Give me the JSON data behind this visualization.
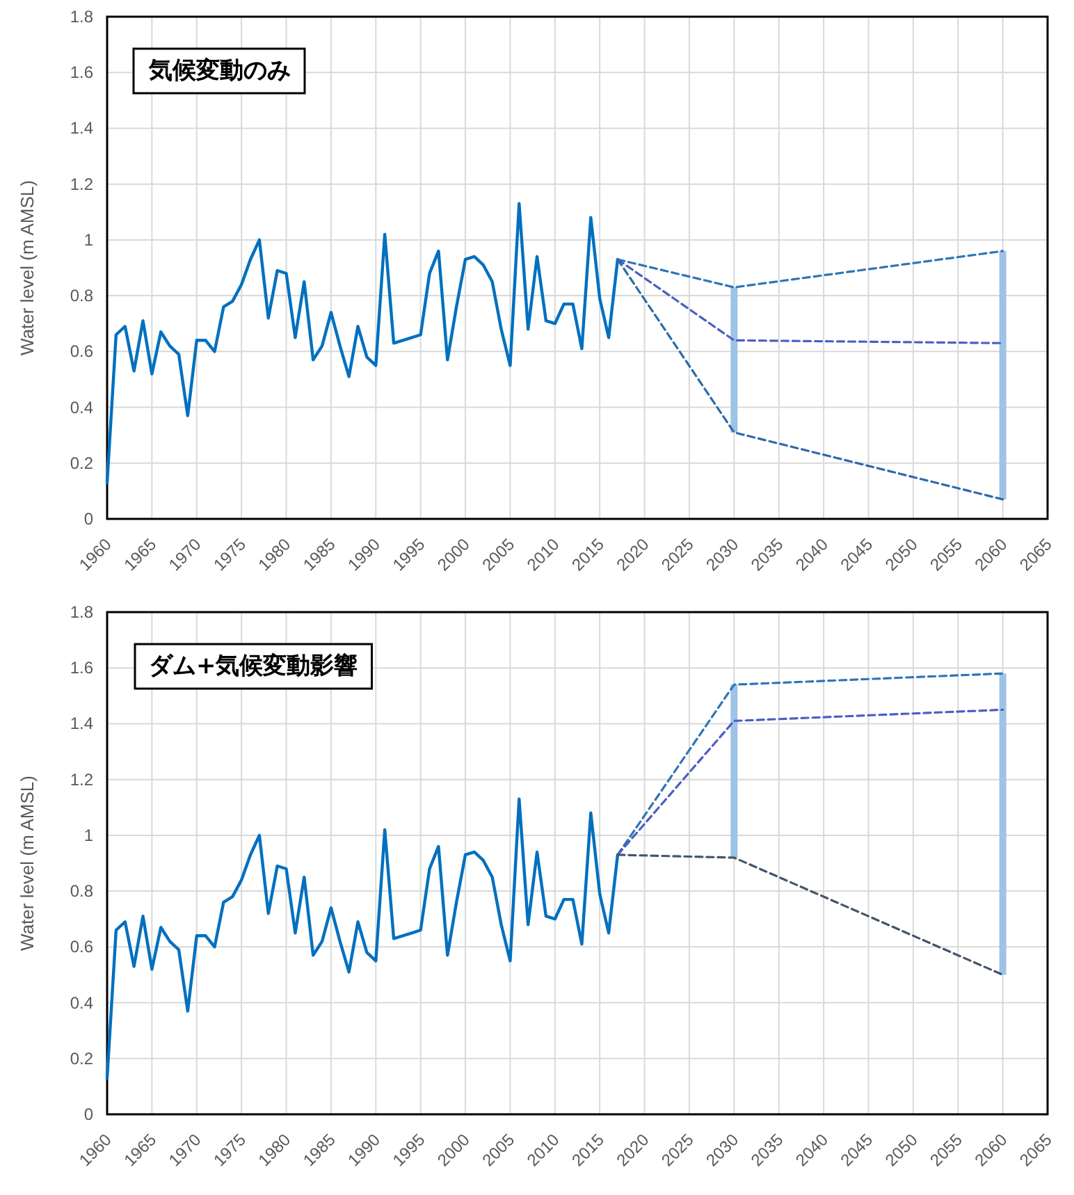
{
  "chart_data": [
    {
      "type": "line",
      "title": "気候変動のみ",
      "ylabel": "Water level (m AMSL)",
      "xlim": [
        1960,
        2065
      ],
      "xticks": [
        1960,
        1965,
        1970,
        1975,
        1980,
        1985,
        1990,
        1995,
        2000,
        2005,
        2010,
        2015,
        2020,
        2025,
        2030,
        2035,
        2040,
        2045,
        2050,
        2055,
        2060,
        2065
      ],
      "ylim": [
        0,
        1.8
      ],
      "yticks": [
        0,
        0.2,
        0.4,
        0.6,
        0.8,
        1,
        1.2,
        1.4,
        1.6,
        1.8
      ],
      "grid": true,
      "series": [
        {
          "type": "bar",
          "color": "#9dc3e6",
          "x": [
            2030,
            2060
          ],
          "base": [
            0.31,
            0.07
          ],
          "values": [
            0.52,
            0.89
          ]
        },
        {
          "color": "#0070c0",
          "line_style": "solid",
          "x": [
            1960,
            1961,
            1962,
            1963,
            1964,
            1965,
            1966,
            1967,
            1968,
            1969,
            1970,
            1971,
            1972,
            1973,
            1974,
            1975,
            1976,
            1977,
            1978,
            1979,
            1980,
            1981,
            1982,
            1983,
            1984,
            1985,
            1986,
            1987,
            1988,
            1989,
            1990,
            1991,
            1992,
            1993,
            1994,
            1995,
            1996,
            1997,
            1998,
            1999,
            2000,
            2001,
            2002,
            2003,
            2004,
            2005,
            2006,
            2007,
            2008,
            2009,
            2010,
            2011,
            2012,
            2013,
            2014,
            2015,
            2016,
            2017
          ],
          "values": [
            0.13,
            0.66,
            0.69,
            0.53,
            0.71,
            0.52,
            0.67,
            0.62,
            0.59,
            0.37,
            0.64,
            0.64,
            0.6,
            0.76,
            0.78,
            0.84,
            0.93,
            1.0,
            0.72,
            0.89,
            0.88,
            0.65,
            0.85,
            0.57,
            0.62,
            0.74,
            0.62,
            0.51,
            0.69,
            0.58,
            0.55,
            1.02,
            0.63,
            0.64,
            0.65,
            0.66,
            0.88,
            0.96,
            0.57,
            0.76,
            0.93,
            0.94,
            0.91,
            0.85,
            0.68,
            0.55,
            1.13,
            0.68,
            0.94,
            0.71,
            0.7,
            0.77,
            0.77,
            0.61,
            1.08,
            0.79,
            0.65,
            0.93
          ]
        },
        {
          "color": "#2e75b6",
          "line_style": "dashed",
          "x": [
            2017,
            2030,
            2060
          ],
          "values": [
            0.93,
            0.83,
            0.96
          ]
        },
        {
          "color": "#4a5fc1",
          "line_style": "dashed",
          "x": [
            2017,
            2030,
            2060
          ],
          "values": [
            0.93,
            0.64,
            0.63
          ]
        },
        {
          "color": "#2f6aa8",
          "line_style": "dashed",
          "x": [
            2017,
            2030,
            2060
          ],
          "values": [
            0.93,
            0.31,
            0.07
          ]
        }
      ]
    },
    {
      "type": "line",
      "title": "ダム+気候変動影響",
      "ylabel": "Water level (m AMSL)",
      "xlim": [
        1960,
        2065
      ],
      "xticks": [
        1960,
        1965,
        1970,
        1975,
        1980,
        1985,
        1990,
        1995,
        2000,
        2005,
        2010,
        2015,
        2020,
        2025,
        2030,
        2035,
        2040,
        2045,
        2050,
        2055,
        2060,
        2065
      ],
      "ylim": [
        0,
        1.8
      ],
      "yticks": [
        0,
        0.2,
        0.4,
        0.6,
        0.8,
        1,
        1.2,
        1.4,
        1.6,
        1.8
      ],
      "grid": true,
      "series": [
        {
          "type": "bar",
          "color": "#9dc3e6",
          "x": [
            2030,
            2060
          ],
          "base": [
            0.92,
            0.5
          ],
          "values": [
            0.62,
            1.08
          ]
        },
        {
          "color": "#0070c0",
          "line_style": "solid",
          "x": [
            1960,
            1961,
            1962,
            1963,
            1964,
            1965,
            1966,
            1967,
            1968,
            1969,
            1970,
            1971,
            1972,
            1973,
            1974,
            1975,
            1976,
            1977,
            1978,
            1979,
            1980,
            1981,
            1982,
            1983,
            1984,
            1985,
            1986,
            1987,
            1988,
            1989,
            1990,
            1991,
            1992,
            1993,
            1994,
            1995,
            1996,
            1997,
            1998,
            1999,
            2000,
            2001,
            2002,
            2003,
            2004,
            2005,
            2006,
            2007,
            2008,
            2009,
            2010,
            2011,
            2012,
            2013,
            2014,
            2015,
            2016,
            2017
          ],
          "values": [
            0.13,
            0.66,
            0.69,
            0.53,
            0.71,
            0.52,
            0.67,
            0.62,
            0.59,
            0.37,
            0.64,
            0.64,
            0.6,
            0.76,
            0.78,
            0.84,
            0.93,
            1.0,
            0.72,
            0.89,
            0.88,
            0.65,
            0.85,
            0.57,
            0.62,
            0.74,
            0.62,
            0.51,
            0.69,
            0.58,
            0.55,
            1.02,
            0.63,
            0.64,
            0.65,
            0.66,
            0.88,
            0.96,
            0.57,
            0.76,
            0.93,
            0.94,
            0.91,
            0.85,
            0.68,
            0.55,
            1.13,
            0.68,
            0.94,
            0.71,
            0.7,
            0.77,
            0.77,
            0.61,
            1.08,
            0.79,
            0.65,
            0.93
          ]
        },
        {
          "color": "#2e75b6",
          "line_style": "dashed",
          "x": [
            2017,
            2030,
            2060
          ],
          "values": [
            0.93,
            1.54,
            1.58
          ]
        },
        {
          "color": "#4a5fc1",
          "line_style": "dashed",
          "x": [
            2017,
            2030,
            2060
          ],
          "values": [
            0.93,
            1.41,
            1.45
          ]
        },
        {
          "color": "#44546a",
          "line_style": "dashed",
          "x": [
            2017,
            2030,
            2060
          ],
          "values": [
            0.93,
            0.92,
            0.5
          ]
        }
      ]
    }
  ]
}
